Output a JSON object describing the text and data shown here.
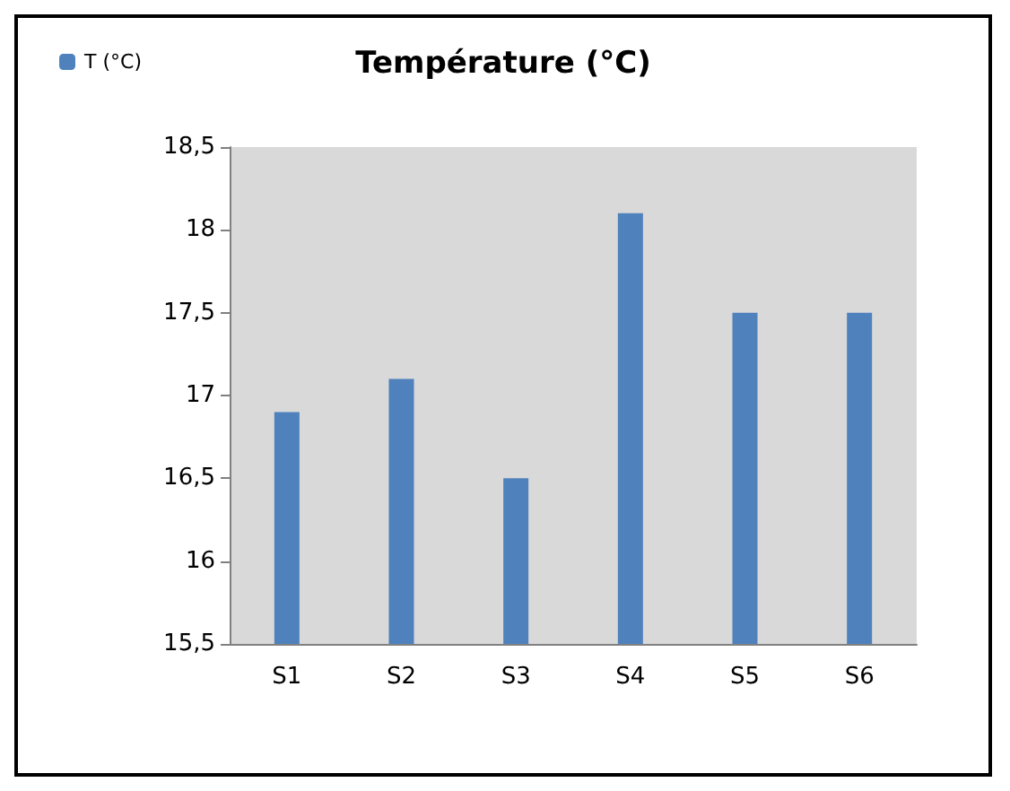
{
  "chart_data": {
    "type": "bar",
    "title": "Température (°C)",
    "categories": [
      "S1",
      "S2",
      "S3",
      "S4",
      "S5",
      "S6"
    ],
    "series": [
      {
        "name": "T (°C)",
        "color": "#4f81bd",
        "values": [
          16.9,
          17.1,
          16.5,
          18.1,
          17.5,
          17.5
        ]
      }
    ],
    "ylim": [
      15.5,
      18.5
    ],
    "yticks": [
      {
        "value": 15.5,
        "label": "15,5"
      },
      16,
      {
        "value": 16.5,
        "label": "16,5"
      },
      17,
      {
        "value": 17.5,
        "label": "17,5"
      },
      18,
      {
        "value": 18.5,
        "label": "18,5"
      }
    ],
    "grid": false,
    "legend": "top left"
  }
}
